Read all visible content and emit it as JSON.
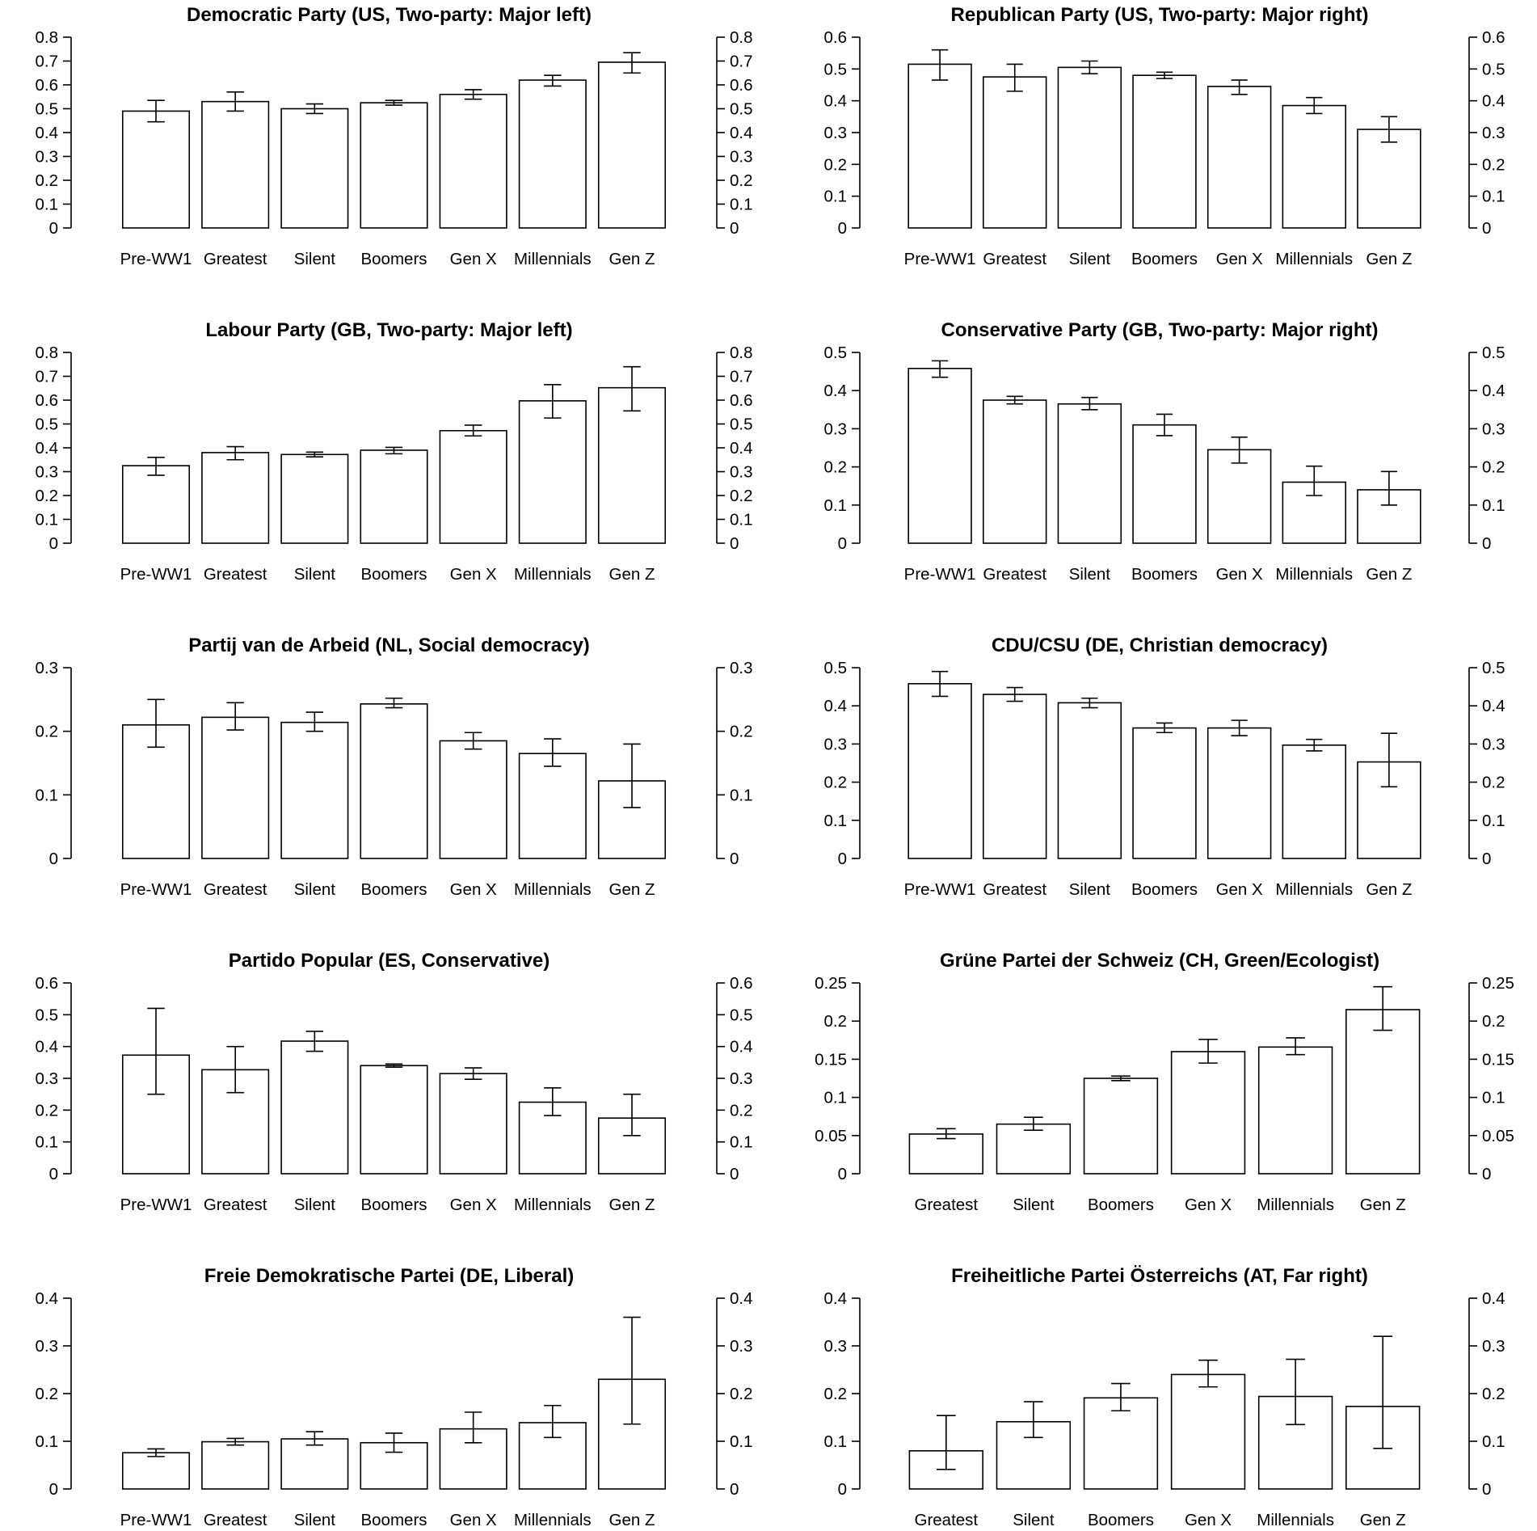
{
  "figure": {
    "background": "#ffffff",
    "bar_fill": "#ffffff",
    "stroke": "#000000"
  },
  "chart_data": [
    {
      "type": "bar",
      "title": "Democratic Party (US, Two-party: Major left)",
      "categories": [
        "Pre-WW1",
        "Greatest",
        "Silent",
        "Boomers",
        "Gen X",
        "Millennials",
        "Gen Z"
      ],
      "values": [
        0.49,
        0.53,
        0.5,
        0.525,
        0.56,
        0.62,
        0.695
      ],
      "lower": [
        0.445,
        0.49,
        0.48,
        0.515,
        0.54,
        0.595,
        0.65
      ],
      "upper": [
        0.535,
        0.57,
        0.52,
        0.535,
        0.58,
        0.64,
        0.735
      ],
      "ylim": [
        0,
        0.8
      ],
      "yticks": [
        "0",
        "0.1",
        "0.2",
        "0.3",
        "0.4",
        "0.5",
        "0.6",
        "0.7",
        "0.8"
      ],
      "xlabel": "",
      "ylabel": ""
    },
    {
      "type": "bar",
      "title": "Republican Party (US, Two-party: Major right)",
      "categories": [
        "Pre-WW1",
        "Greatest",
        "Silent",
        "Boomers",
        "Gen X",
        "Millennials",
        "Gen Z"
      ],
      "values": [
        0.515,
        0.475,
        0.505,
        0.48,
        0.445,
        0.385,
        0.31
      ],
      "lower": [
        0.465,
        0.43,
        0.485,
        0.47,
        0.42,
        0.36,
        0.27
      ],
      "upper": [
        0.56,
        0.515,
        0.525,
        0.49,
        0.465,
        0.41,
        0.35
      ],
      "ylim": [
        0,
        0.6
      ],
      "yticks": [
        "0",
        "0.1",
        "0.2",
        "0.3",
        "0.4",
        "0.5",
        "0.6"
      ],
      "xlabel": "",
      "ylabel": ""
    },
    {
      "type": "bar",
      "title": "Labour Party (GB, Two-party: Major left)",
      "categories": [
        "Pre-WW1",
        "Greatest",
        "Silent",
        "Boomers",
        "Gen X",
        "Millennials",
        "Gen Z"
      ],
      "values": [
        0.325,
        0.38,
        0.372,
        0.39,
        0.472,
        0.597,
        0.652
      ],
      "lower": [
        0.285,
        0.35,
        0.362,
        0.375,
        0.45,
        0.525,
        0.555
      ],
      "upper": [
        0.36,
        0.405,
        0.382,
        0.402,
        0.495,
        0.665,
        0.74
      ],
      "ylim": [
        0,
        0.8
      ],
      "yticks": [
        "0",
        "0.1",
        "0.2",
        "0.3",
        "0.4",
        "0.5",
        "0.6",
        "0.7",
        "0.8"
      ],
      "xlabel": "",
      "ylabel": ""
    },
    {
      "type": "bar",
      "title": "Conservative Party (GB, Two-party: Major right)",
      "categories": [
        "Pre-WW1",
        "Greatest",
        "Silent",
        "Boomers",
        "Gen X",
        "Millennials",
        "Gen Z"
      ],
      "values": [
        0.458,
        0.375,
        0.365,
        0.31,
        0.245,
        0.16,
        0.14
      ],
      "lower": [
        0.435,
        0.365,
        0.35,
        0.282,
        0.21,
        0.125,
        0.1
      ],
      "upper": [
        0.478,
        0.385,
        0.382,
        0.338,
        0.278,
        0.202,
        0.188
      ],
      "ylim": [
        0,
        0.5
      ],
      "yticks": [
        "0",
        "0.1",
        "0.2",
        "0.3",
        "0.4",
        "0.5"
      ],
      "xlabel": "",
      "ylabel": ""
    },
    {
      "type": "bar",
      "title": "Partij van de Arbeid (NL, Social democracy)",
      "categories": [
        "Pre-WW1",
        "Greatest",
        "Silent",
        "Boomers",
        "Gen X",
        "Millennials",
        "Gen Z"
      ],
      "values": [
        0.21,
        0.222,
        0.214,
        0.243,
        0.185,
        0.165,
        0.122
      ],
      "lower": [
        0.175,
        0.202,
        0.2,
        0.237,
        0.172,
        0.145,
        0.08
      ],
      "upper": [
        0.25,
        0.245,
        0.23,
        0.252,
        0.198,
        0.188,
        0.18
      ],
      "ylim": [
        0,
        0.3
      ],
      "yticks": [
        "0",
        "0.1",
        "0.2",
        "0.3"
      ],
      "xlabel": "",
      "ylabel": ""
    },
    {
      "type": "bar",
      "title": "CDU/CSU (DE, Christian democracy)",
      "categories": [
        "Pre-WW1",
        "Greatest",
        "Silent",
        "Boomers",
        "Gen X",
        "Millennials",
        "Gen Z"
      ],
      "values": [
        0.458,
        0.43,
        0.408,
        0.342,
        0.342,
        0.297,
        0.253
      ],
      "lower": [
        0.425,
        0.412,
        0.395,
        0.33,
        0.322,
        0.282,
        0.188
      ],
      "upper": [
        0.49,
        0.448,
        0.42,
        0.355,
        0.362,
        0.312,
        0.328
      ],
      "ylim": [
        0,
        0.5
      ],
      "yticks": [
        "0",
        "0.1",
        "0.2",
        "0.3",
        "0.4",
        "0.5"
      ],
      "xlabel": "",
      "ylabel": ""
    },
    {
      "type": "bar",
      "title": "Partido Popular (ES, Conservative)",
      "categories": [
        "Pre-WW1",
        "Greatest",
        "Silent",
        "Boomers",
        "Gen X",
        "Millennials",
        "Gen Z"
      ],
      "values": [
        0.373,
        0.327,
        0.417,
        0.34,
        0.315,
        0.225,
        0.175
      ],
      "lower": [
        0.25,
        0.255,
        0.385,
        0.335,
        0.297,
        0.183,
        0.12
      ],
      "upper": [
        0.52,
        0.4,
        0.448,
        0.345,
        0.333,
        0.27,
        0.25
      ],
      "ylim": [
        0,
        0.6
      ],
      "yticks": [
        "0",
        "0.1",
        "0.2",
        "0.3",
        "0.4",
        "0.5",
        "0.6"
      ],
      "xlabel": "",
      "ylabel": ""
    },
    {
      "type": "bar",
      "title": "Grüne Partei der Schweiz (CH, Green/Ecologist)",
      "categories": [
        "Greatest",
        "Silent",
        "Boomers",
        "Gen X",
        "Millennials",
        "Gen Z"
      ],
      "values": [
        0.052,
        0.065,
        0.125,
        0.16,
        0.166,
        0.215
      ],
      "lower": [
        0.046,
        0.057,
        0.122,
        0.145,
        0.156,
        0.188
      ],
      "upper": [
        0.059,
        0.074,
        0.128,
        0.176,
        0.178,
        0.245
      ],
      "ylim": [
        0,
        0.25
      ],
      "yticks": [
        "0",
        "0.05",
        "0.1",
        "0.15",
        "0.2",
        "0.25"
      ],
      "xlabel": "",
      "ylabel": ""
    },
    {
      "type": "bar",
      "title": "Freie Demokratische Partei (DE, Liberal)",
      "categories": [
        "Pre-WW1",
        "Greatest",
        "Silent",
        "Boomers",
        "Gen X",
        "Millennials",
        "Gen Z"
      ],
      "values": [
        0.076,
        0.099,
        0.105,
        0.097,
        0.126,
        0.139,
        0.23
      ],
      "lower": [
        0.068,
        0.092,
        0.092,
        0.077,
        0.097,
        0.108,
        0.136
      ],
      "upper": [
        0.084,
        0.106,
        0.12,
        0.117,
        0.161,
        0.175,
        0.36
      ],
      "ylim": [
        0,
        0.4
      ],
      "yticks": [
        "0",
        "0.1",
        "0.2",
        "0.3",
        "0.4"
      ],
      "xlabel": "",
      "ylabel": ""
    },
    {
      "type": "bar",
      "title": "Freiheitliche Partei Österreichs (AT, Far right)",
      "categories": [
        "Greatest",
        "Silent",
        "Boomers",
        "Gen X",
        "Millennials",
        "Gen Z"
      ],
      "values": [
        0.08,
        0.141,
        0.191,
        0.24,
        0.194,
        0.173
      ],
      "lower": [
        0.041,
        0.108,
        0.164,
        0.214,
        0.135,
        0.085
      ],
      "upper": [
        0.154,
        0.183,
        0.221,
        0.27,
        0.272,
        0.32
      ],
      "ylim": [
        0,
        0.4
      ],
      "yticks": [
        "0",
        "0.1",
        "0.2",
        "0.3",
        "0.4"
      ],
      "xlabel": "",
      "ylabel": ""
    }
  ]
}
